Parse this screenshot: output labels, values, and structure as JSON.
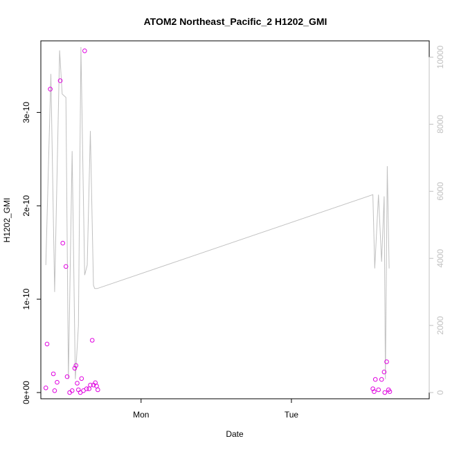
{
  "chart_data": {
    "type": "scatter",
    "title": "ATOM2 Northeast_Pacific_2 H1202_GMI",
    "xlabel": "Date",
    "ylabel": "H1202_GMI",
    "x_ticks": [
      "Mon",
      "Tue"
    ],
    "y_ticks": [
      "0e+00",
      "1e-10",
      "2e-10",
      "3e-10"
    ],
    "y_lim": [
      0,
      3.7e-10
    ],
    "y2_ticks": [
      "0",
      "2000",
      "4000",
      "6000",
      "8000",
      "10000"
    ],
    "y2_lim": [
      0,
      10300
    ],
    "x_lim_hours": [
      -16,
      46
    ],
    "grid": false,
    "points_color": "#e000e0",
    "line_color": "#c0c0c0",
    "series": [
      {
        "kind": "points",
        "axis": "left",
        "x_hours": [
          -15.2,
          -15.0,
          -14.5,
          -14.0,
          -13.8,
          -13.4,
          -12.9,
          -12.5,
          -12.0,
          -11.8,
          -11.4,
          -11.0,
          -10.6,
          -10.4,
          -10.2,
          -10.0,
          -9.7,
          -9.5,
          -9.2,
          -9.0,
          -8.7,
          -8.3,
          -8.1,
          -7.8,
          -7.6,
          -7.3,
          -7.1,
          -6.9,
          37.0,
          37.2,
          37.4,
          37.9,
          38.4,
          38.8,
          38.9,
          39.2,
          39.5,
          39.7
        ],
        "y": [
          5e-12,
          5.2e-11,
          3.25e-10,
          2e-11,
          2e-12,
          1.1e-11,
          3.34e-10,
          1.6e-10,
          1.35e-10,
          1.7e-11,
          0,
          2e-12,
          2.6e-11,
          2.9e-11,
          1e-11,
          3e-12,
          0,
          1.5e-11,
          2e-12,
          3.66e-10,
          4e-12,
          4e-12,
          8e-12,
          5.6e-11,
          8e-12,
          1.05e-11,
          7e-12,
          3e-12,
          4e-12,
          1e-12,
          1.4e-11,
          3e-12,
          1.4e-11,
          2.2e-11,
          0,
          3.3e-11,
          3e-12,
          1e-12
        ]
      },
      {
        "kind": "line",
        "axis": "right",
        "x_hours": [
          -15.2,
          -14.4,
          -13.8,
          -13.0,
          -12.6,
          -12.0,
          -11.6,
          -11.0,
          -10.5,
          -10.0,
          -9.6,
          -9.0,
          -8.6,
          -8.1,
          -7.6,
          -7.4,
          -7.0,
          37.0,
          37.3,
          37.9,
          38.4,
          38.8,
          39.0,
          39.3,
          39.6
        ],
        "y": [
          3800,
          9500,
          3000,
          10200,
          8900,
          8800,
          400,
          7200,
          400,
          2000,
          10300,
          3500,
          3800,
          7800,
          3200,
          3100,
          3100,
          5900,
          3700,
          5900,
          3900,
          5850,
          400,
          6750,
          3700
        ]
      }
    ]
  }
}
